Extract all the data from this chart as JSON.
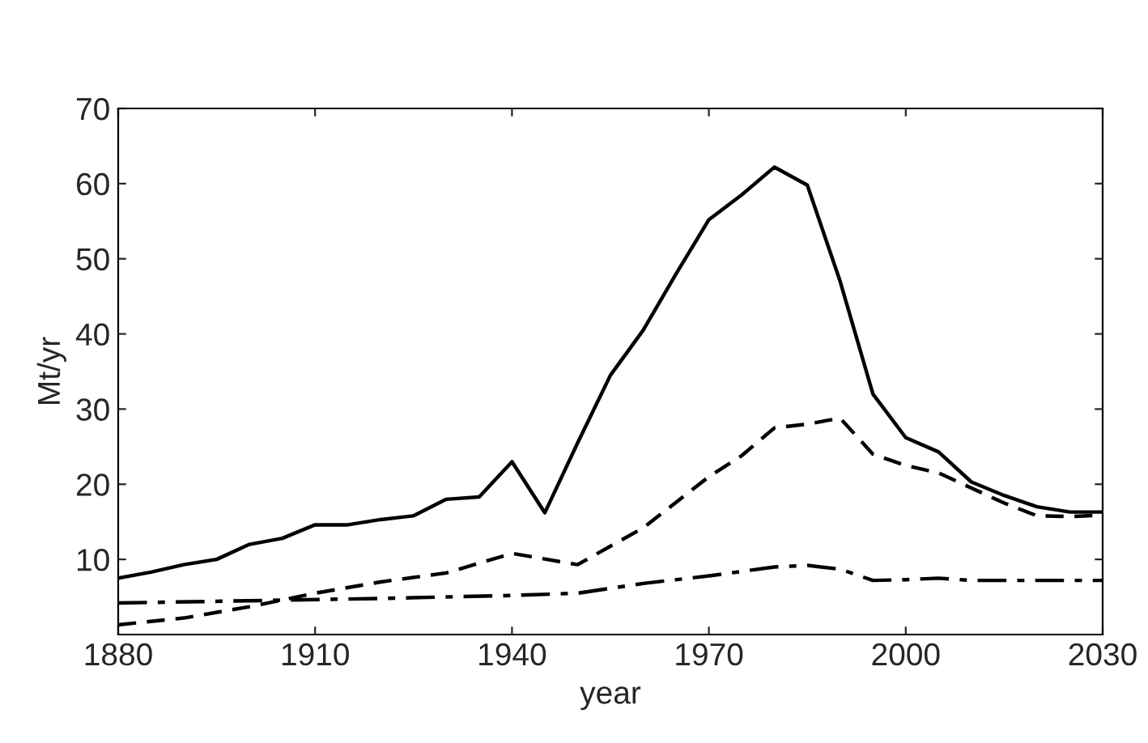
{
  "chart_data": {
    "type": "line",
    "xlabel": "year",
    "ylabel": "Mt/yr",
    "xlim": [
      1880,
      2030
    ],
    "xticks": [
      1880,
      1910,
      1940,
      1970,
      2000,
      2030
    ],
    "ylim": [
      0,
      70
    ],
    "yticks": [
      10,
      20,
      30,
      40,
      50,
      60,
      70
    ],
    "grid": false,
    "series": [
      {
        "color": "#000000",
        "line_style": "solid",
        "x": [
          1880,
          1885,
          1890,
          1895,
          1900,
          1905,
          1910,
          1915,
          1920,
          1925,
          1930,
          1935,
          1940,
          1945,
          1950,
          1955,
          1960,
          1965,
          1970,
          1975,
          1980,
          1985,
          1990,
          1995,
          2000,
          2005,
          2010,
          2015,
          2020,
          2025,
          2030
        ],
        "values": [
          7.5,
          8.3,
          9.3,
          10,
          12,
          12.8,
          14.6,
          14.6,
          15.3,
          15.8,
          18,
          18.3,
          23,
          16.2,
          25.5,
          34.5,
          40.5,
          48,
          55.2,
          58.5,
          62.2,
          59.8,
          47,
          32,
          26.2,
          24.3,
          20.3,
          18.5,
          17,
          16.3,
          16.3
        ]
      },
      {
        "color": "#000000",
        "line_style": "dashed",
        "x": [
          1880,
          1890,
          1900,
          1910,
          1920,
          1930,
          1940,
          1950,
          1960,
          1970,
          1975,
          1980,
          1985,
          1990,
          1995,
          2000,
          2005,
          2010,
          2015,
          2020,
          2025,
          2030
        ],
        "values": [
          1.3,
          2.2,
          3.7,
          5.5,
          7,
          8.2,
          10.8,
          9.3,
          14.2,
          21,
          23.8,
          27.5,
          28,
          28.8,
          24,
          22.5,
          21.5,
          19.5,
          17.5,
          15.8,
          15.7,
          15.9
        ]
      },
      {
        "color": "#000000",
        "line_style": "dashdot",
        "x": [
          1880,
          1900,
          1920,
          1940,
          1950,
          1960,
          1970,
          1980,
          1985,
          1990,
          1995,
          2000,
          2005,
          2010,
          2030
        ],
        "values": [
          4.2,
          4.5,
          4.8,
          5.2,
          5.5,
          6.8,
          7.8,
          9.0,
          9.2,
          8.7,
          7.2,
          7.3,
          7.5,
          7.2,
          7.2
        ]
      }
    ]
  }
}
